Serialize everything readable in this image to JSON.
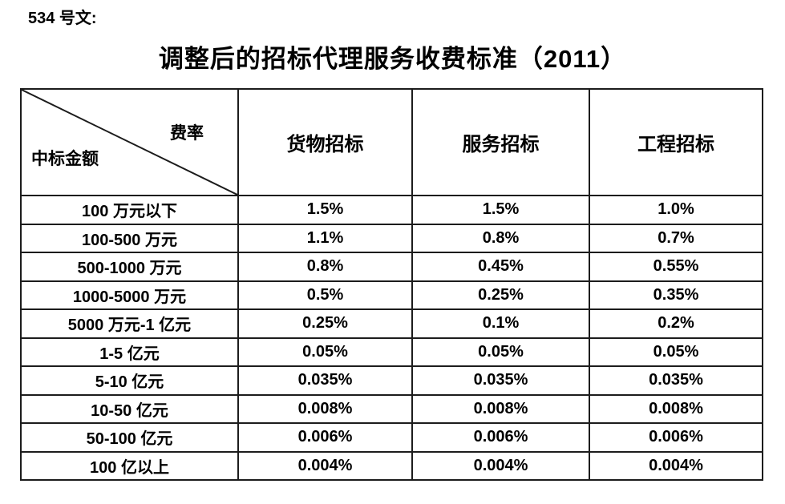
{
  "doc": {
    "doc_number": "534 号文:",
    "title": "调整后的招标代理服务收费标准（2011）"
  },
  "table": {
    "corner": {
      "top_right": "费率",
      "bottom_left": "中标金额"
    },
    "columns": [
      "货物招标",
      "服务招标",
      "工程招标"
    ],
    "rows": [
      {
        "label": "100 万元以下",
        "values": [
          "1.5%",
          "1.5%",
          "1.0%"
        ]
      },
      {
        "label": "100-500 万元",
        "values": [
          "1.1%",
          "0.8%",
          "0.7%"
        ]
      },
      {
        "label": "500-1000 万元",
        "values": [
          "0.8%",
          "0.45%",
          "0.55%"
        ]
      },
      {
        "label": "1000-5000 万元",
        "values": [
          "0.5%",
          "0.25%",
          "0.35%"
        ]
      },
      {
        "label": "5000 万元-1 亿元",
        "values": [
          "0.25%",
          "0.1%",
          "0.2%"
        ]
      },
      {
        "label": "1-5 亿元",
        "values": [
          "0.05%",
          "0.05%",
          "0.05%"
        ]
      },
      {
        "label": "5-10 亿元",
        "values": [
          "0.035%",
          "0.035%",
          "0.035%"
        ]
      },
      {
        "label": "10-50 亿元",
        "values": [
          "0.008%",
          "0.008%",
          "0.008%"
        ]
      },
      {
        "label": "50-100 亿元",
        "values": [
          "0.006%",
          "0.006%",
          "0.006%"
        ]
      },
      {
        "label": "100 亿以上",
        "values": [
          "0.004%",
          "0.004%",
          "0.004%"
        ]
      }
    ],
    "colors": {
      "border": "#1c1c1c",
      "text": "#000000",
      "background": "#ffffff"
    }
  }
}
